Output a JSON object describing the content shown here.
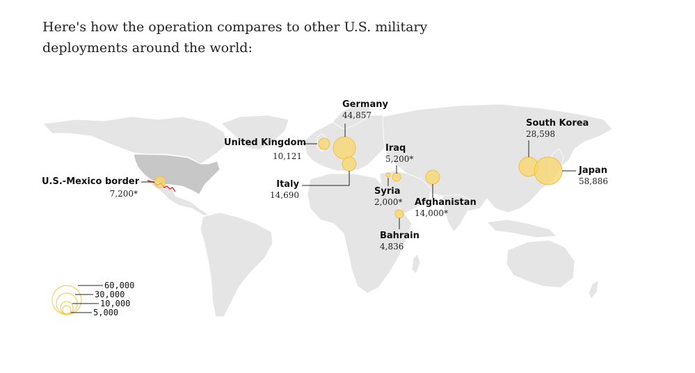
{
  "intro_text": "Here's how the operation compares to other U.S. military deployments around the world:",
  "colors": {
    "bubble": "#fad66a",
    "bubble_stroke": "#f2bf3a",
    "land": "#e5e5e5",
    "us_land": "#c7c7c7",
    "border_line": "#e0312d"
  },
  "deployments": [
    {
      "id": "germany",
      "name": "Germany",
      "value": "44,857",
      "troops": 44857
    },
    {
      "id": "united-kingdom",
      "name": "United Kingdom",
      "value": "10,121",
      "troops": 10121
    },
    {
      "id": "italy",
      "name": "Italy",
      "value": "14,690",
      "troops": 14690
    },
    {
      "id": "iraq",
      "name": "Iraq",
      "value": "5,200*",
      "troops": 5200
    },
    {
      "id": "syria",
      "name": "Syria",
      "value": "2,000*",
      "troops": 2000
    },
    {
      "id": "afghanistan",
      "name": "Afghanistan",
      "value": "14,000*",
      "troops": 14000
    },
    {
      "id": "bahrain",
      "name": "Bahrain",
      "value": "4,836",
      "troops": 4836
    },
    {
      "id": "south-korea",
      "name": "South Korea",
      "value": "28,598",
      "troops": 28598
    },
    {
      "id": "japan",
      "name": "Japan",
      "value": "58,886",
      "troops": 58886
    },
    {
      "id": "us-mexico-border",
      "name": "U.S.-Mexico border",
      "value": "7,200*",
      "troops": 7200
    }
  ],
  "legend": [
    "60,000",
    "30,000",
    "10,000",
    "5,000"
  ]
}
